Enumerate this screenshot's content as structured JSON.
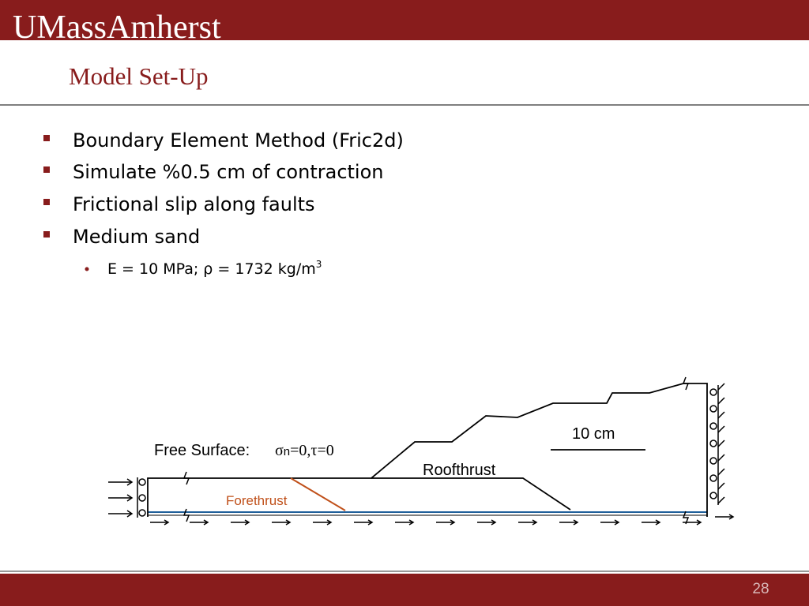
{
  "header": {
    "logo": "UMassAmherst",
    "title": "Model Set-Up"
  },
  "bullets": [
    "Boundary Element Method (Fric2d)",
    "Simulate %0.5 cm of contraction",
    "Frictional slip along faults",
    "Medium sand"
  ],
  "sub_bullet": {
    "text": "E = 10 MPa; ρ = 1732 kg/m",
    "superscript": "3"
  },
  "diagram": {
    "free_surface": "Free Surface:",
    "condition": {
      "sigma": "σ",
      "subscript": "n",
      "rest": "=0,τ=0"
    },
    "scale": "10 cm",
    "roofthrust": "Roofthrust",
    "forethrust": "Forethrust"
  },
  "footer": {
    "page": "28"
  }
}
